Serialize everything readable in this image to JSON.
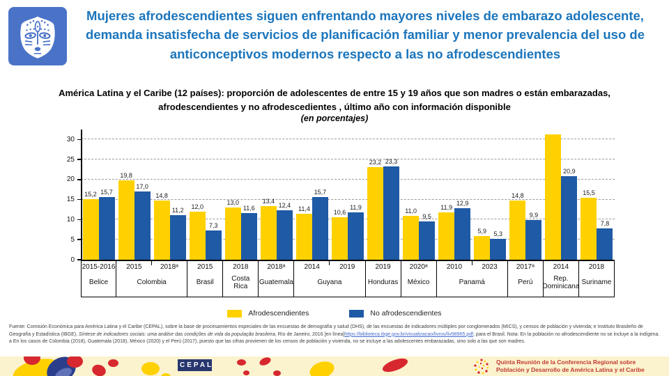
{
  "header": {
    "title": "Mujeres afrodescendientes siguen enfrentando mayores niveles de embarazo adolescente, demanda insatisfecha de servicios de planificación familiar y menor prevalencia del uso de anticonceptivos modernos respecto a las no afrodescendientes"
  },
  "chart_data": {
    "type": "bar",
    "title": "América Latina y el Caribe (12 países): proporción de adolescentes de entre 15 y 19 años que son madres o están embarazadas, afrodescendientes y no afrodescedientes , último año con información disponible",
    "subtitle": "(en porcentajes)",
    "ylim": [
      0,
      32.5
    ],
    "yticks": [
      0,
      5,
      10,
      15,
      20,
      25,
      30
    ],
    "grid": "horizontal-dashed",
    "legend_position": "bottom",
    "legend": [
      {
        "label": "Afrodescendientes",
        "color": "#ffd100"
      },
      {
        "label": "No afrodescendientes",
        "color": "#1e5aa5"
      }
    ],
    "groups": [
      {
        "country": "Belice",
        "entries": [
          {
            "year": "2015-2016",
            "values": [
              15.2,
              15.7
            ]
          }
        ]
      },
      {
        "country": "Colombia",
        "entries": [
          {
            "year": "2015",
            "values": [
              19.8,
              17.0
            ]
          },
          {
            "year": "2018ᵃ",
            "values": [
              14.8,
              11.2
            ]
          }
        ]
      },
      {
        "country": "Brasil",
        "entries": [
          {
            "year": "2015",
            "values": [
              12.0,
              7.3
            ]
          }
        ]
      },
      {
        "country": "Costa Rica",
        "entries": [
          {
            "year": "2018",
            "values": [
              13.0,
              11.6
            ]
          }
        ]
      },
      {
        "country": "Guatemala",
        "entries": [
          {
            "year": "2018ᵃ",
            "values": [
              13.4,
              12.4
            ]
          }
        ]
      },
      {
        "country": "Guyana",
        "entries": [
          {
            "year": "2014",
            "values": [
              11.4,
              15.7
            ]
          },
          {
            "year": "2019",
            "values": [
              10.6,
              11.9
            ]
          }
        ]
      },
      {
        "country": "Honduras",
        "entries": [
          {
            "year": "2019",
            "values": [
              23.2,
              23.3
            ]
          }
        ]
      },
      {
        "country": "México",
        "entries": [
          {
            "year": "2020ᵃ",
            "values": [
              11.0,
              9.5
            ]
          }
        ]
      },
      {
        "country": "Panamá",
        "entries": [
          {
            "year": "2010",
            "values": [
              11.9,
              12.9
            ]
          },
          {
            "year": "2023",
            "values": [
              5.9,
              5.3
            ]
          }
        ]
      },
      {
        "country": "Perú",
        "entries": [
          {
            "year": "2017ᵃ",
            "values": [
              14.8,
              9.9
            ]
          }
        ]
      },
      {
        "country": "Rep. Dominicana",
        "entries": [
          {
            "year": "2014",
            "values": [
              31.2,
              20.9
            ],
            "labels_shown": [
              false,
              true
            ]
          }
        ]
      },
      {
        "country": "Suriname",
        "entries": [
          {
            "year": "2018",
            "values": [
              15.5,
              7.8
            ]
          }
        ]
      }
    ]
  },
  "footnote": {
    "seg1": "Fuente: Comisión Económica para América Latina y el Caribe (CEPAL), sobre la base de procesamientos especiales de las encuestas de demografía y salud (DHS), de las encuestas de indicadores múltiples por conglomerados (MICS), y censos de población y vivienda; e Instituto Brasileño de Geografía y Estadística (IBGE), ",
    "seg2_italic": "Síntese de indicadores sociais: uma análise das condições de vida da população brasileira",
    "seg3": ", Río de Janeiro, 2016 [en línea]",
    "seg4_link": "https://biblioteca.ibge.gov.br/visualizacao/livros/liv98965.pdf",
    "seg5": ", para el Brasil. Nota: En la población no afrodescendiente no se incluye a la indígena. a En los casos de Colombia (2018), Guatemala (2018), México (2020) y el Perú (2017), puesto que las cifras provienen de los censos de población y vivienda, no se incluye a las adolescentes embarazadas, sino solo a las que son madres."
  },
  "footer": {
    "cepal_logo": "CEPAL",
    "conference_line1": "Quinta Reunión de la Conferencia Regional sobre",
    "conference_line2": "Población y Desarrollo de América Latina y el Caribe"
  }
}
